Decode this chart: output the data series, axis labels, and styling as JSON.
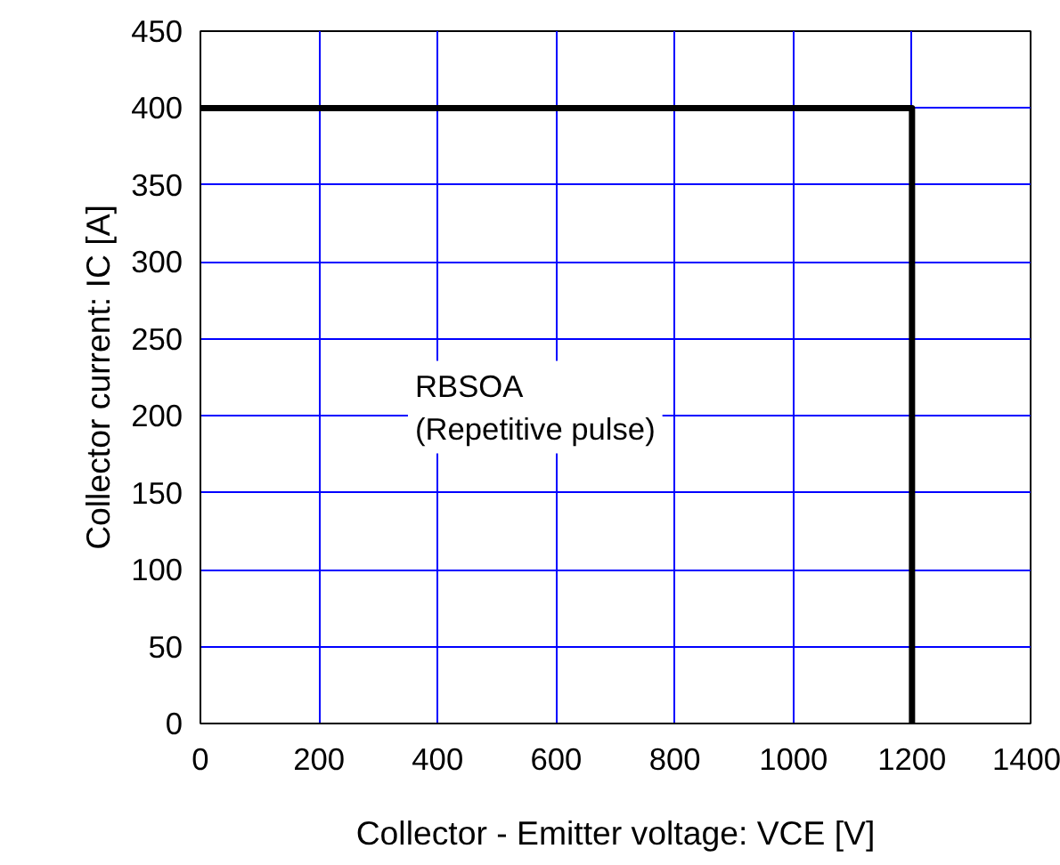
{
  "chart_data": {
    "type": "step",
    "xlabel": "Collector - Emitter voltage: VCE [V]",
    "ylabel": "Collector current: IC [A]",
    "x": [
      0,
      1200
    ],
    "series": [
      {
        "values": [
          400,
          0
        ],
        "color": "#000000"
      }
    ],
    "xlim": [
      0,
      1400
    ],
    "xticks": [
      0,
      200,
      400,
      600,
      800,
      1000,
      1200,
      1400
    ],
    "ylim": [
      0,
      450
    ],
    "yticks": [
      0,
      50,
      100,
      150,
      200,
      250,
      300,
      350,
      400,
      450
    ],
    "grid": true,
    "marker": "none",
    "line_style": "solid",
    "annotations": [
      "RBSOA\n(Repetitive pulse)"
    ]
  }
}
